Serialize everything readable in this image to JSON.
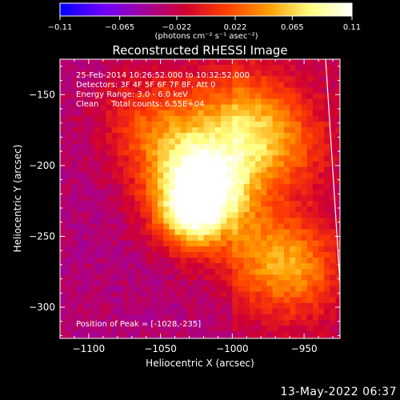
{
  "chart_data": {
    "type": "heatmap",
    "title": "Reconstructed RHESSI Image",
    "xlabel": "Heliocentric X (arcsec)",
    "ylabel": "Heliocentric Y (arcsec)",
    "xlim": [
      -1120,
      -925
    ],
    "ylim": [
      -322,
      -125
    ],
    "xticks": [
      -1100,
      -1050,
      -1000,
      -950
    ],
    "yticks": [
      -150,
      -200,
      -250,
      -300
    ],
    "info_lines": [
      "25-Feb-2014 10:26:52.000 to 10:32:52.000",
      "Detectors: 3F 4F 5F 6F 7F 8F, Att 0",
      "Energy Range: 3.0 - 6.0 keV",
      "Clean     Total counts: 6.55E+04"
    ],
    "peak_label": "Position of Peak = [-1028,-235]",
    "peak": [
      -1028,
      -235
    ],
    "colorbar": {
      "min": -0.11,
      "max": 0.11,
      "ticks": [
        -0.11,
        -0.065,
        -0.022,
        0.022,
        0.065,
        0.11
      ],
      "units_label": "(photons cm⁻² s⁻¹ asec⁻²)",
      "colormap": [
        "#0000ff",
        "#6a00ff",
        "#a000a0",
        "#d00030",
        "#ff4000",
        "#ff9c00",
        "#ffff80",
        "#ffffff"
      ]
    },
    "limb_line": {
      "points": [
        [
          -935,
          -125
        ],
        [
          -925,
          -283
        ]
      ]
    },
    "sources": [
      {
        "x": -1028,
        "y": -235,
        "amp": 0.11,
        "sigma": 18
      },
      {
        "x": -1012,
        "y": -212,
        "amp": 0.085,
        "sigma": 20
      },
      {
        "x": -1035,
        "y": -200,
        "amp": 0.07,
        "sigma": 24
      },
      {
        "x": -1000,
        "y": -165,
        "amp": 0.06,
        "sigma": 25
      },
      {
        "x": -970,
        "y": -185,
        "amp": 0.055,
        "sigma": 24
      },
      {
        "x": -955,
        "y": -275,
        "amp": 0.05,
        "sigma": 22
      },
      {
        "x": -980,
        "y": -260,
        "amp": 0.045,
        "sigma": 25
      },
      {
        "x": -1060,
        "y": -165,
        "amp": 0.04,
        "sigma": 25
      }
    ]
  },
  "footer": {
    "timestamp": "13-May-2022 06:37"
  }
}
